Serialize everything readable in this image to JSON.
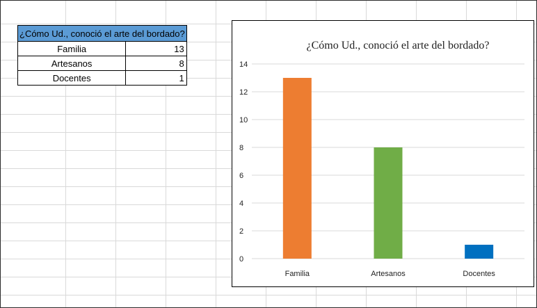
{
  "table": {
    "header": "¿Cómo Ud., conoció el arte del bordado?",
    "rows": [
      {
        "label": "Familia",
        "value": "13"
      },
      {
        "label": "Artesanos",
        "value": "8"
      },
      {
        "label": "Docentes",
        "value": "1"
      }
    ]
  },
  "chart_data": {
    "type": "bar",
    "title": "¿Cómo Ud., conoció el arte del bordado?",
    "categories": [
      "Familia",
      "Artesanos",
      "Docentes"
    ],
    "values": [
      13,
      8,
      1
    ],
    "colors": [
      "#ed7d31",
      "#70ad47",
      "#0070c0"
    ],
    "ylim": [
      0,
      14
    ],
    "yticks": [
      0,
      2,
      4,
      6,
      8,
      10,
      12,
      14
    ],
    "grid": true,
    "legend": "none"
  }
}
